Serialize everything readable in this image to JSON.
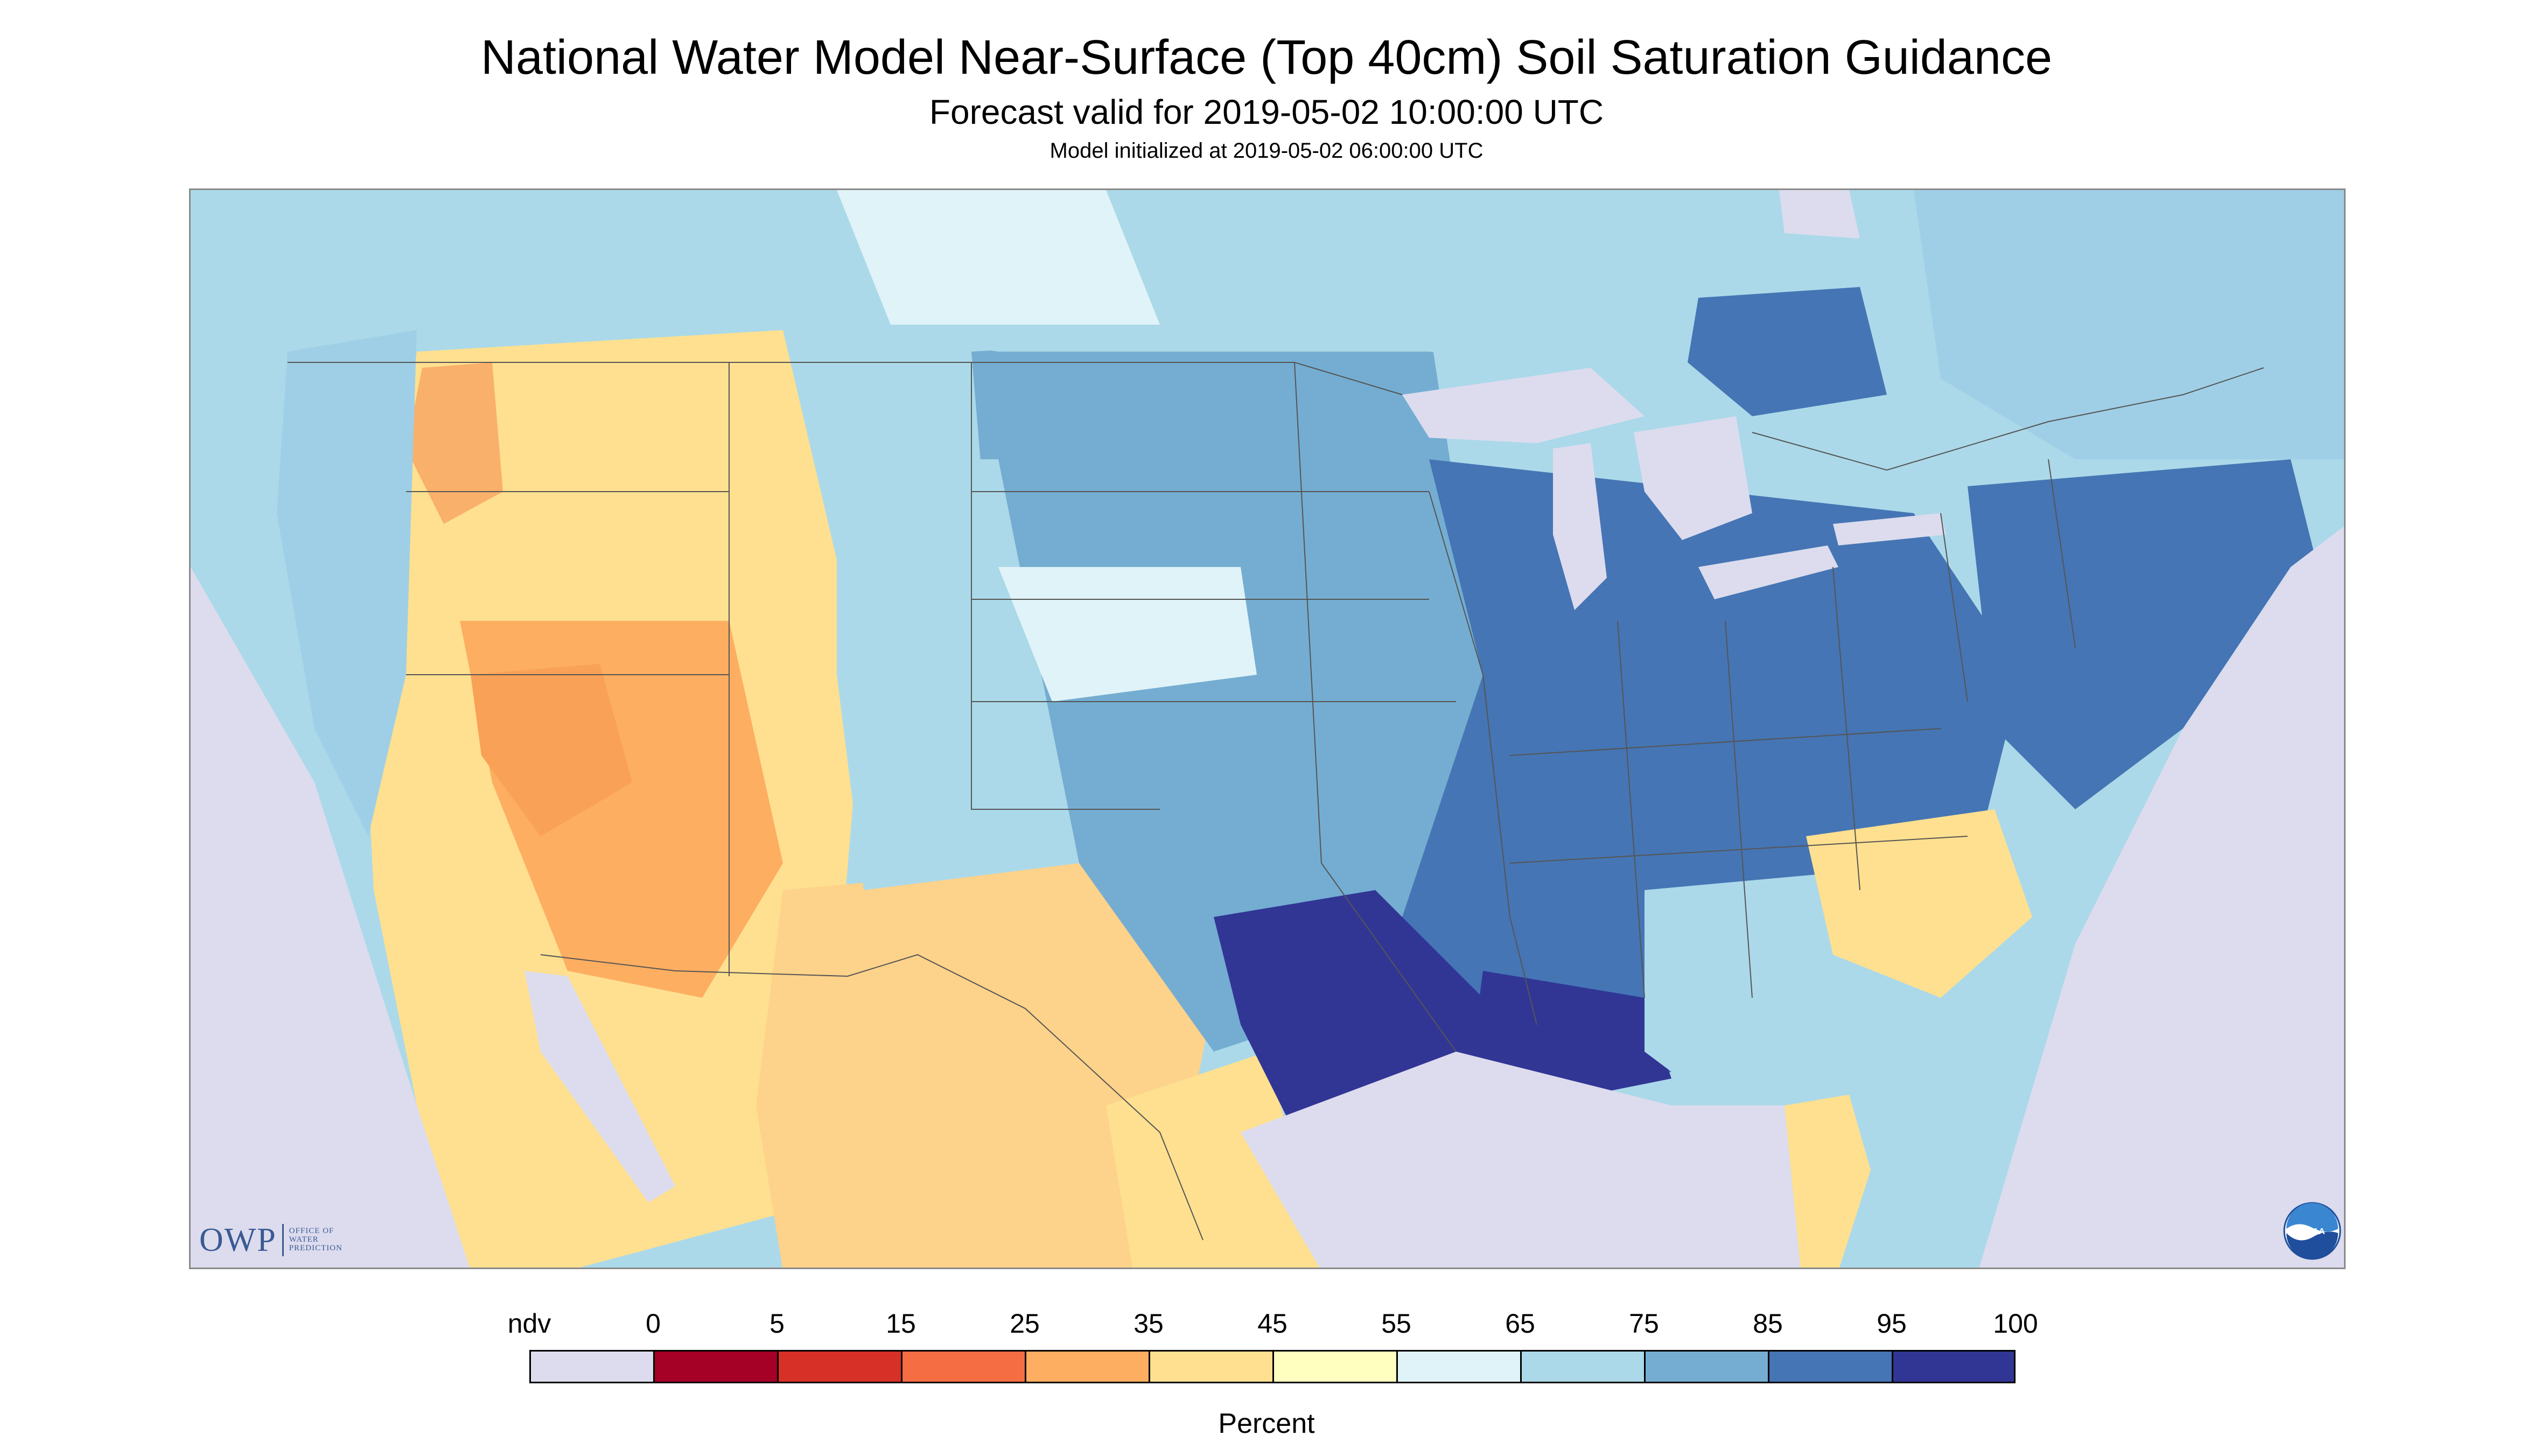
{
  "header": {
    "title": "National Water Model Near-Surface (Top 40cm) Soil Saturation Guidance",
    "forecast_valid": "Forecast valid for 2019-05-02 10:00:00 UTC",
    "model_initialized": "Model initialized at 2019-05-02 06:00:00 UTC"
  },
  "logos": {
    "owp_text": "OWP",
    "owp_subtext": "OFFICE OF WATER PREDICTION",
    "noaa_text": "NOAA"
  },
  "legend": {
    "unit": "Percent",
    "labels": [
      "ndv",
      "0",
      "5",
      "15",
      "25",
      "35",
      "45",
      "55",
      "65",
      "75",
      "85",
      "95",
      "100"
    ],
    "colors": [
      "#dcdcee",
      "#a50026",
      "#d73027",
      "#f46d43",
      "#fdae61",
      "#fee090",
      "#ffffbf",
      "#e0f3f8",
      "#abd9e9",
      "#74add1",
      "#4575b4",
      "#313695"
    ]
  },
  "map": {
    "nodata_color": "#dcdcee",
    "water_color": "#dcdcee",
    "region_levels": {
      "pacific_northwest_coast": "65-75",
      "intermountain_west": "25-45",
      "southwest_desert": "25-35",
      "northern_plains": "65-85",
      "central_midwest": "75-95",
      "east_texas_louisiana": "85-100",
      "west_texas_mexico": "35-45",
      "southeast": "45-65",
      "northeast": "75-85",
      "canada_east": "65-85"
    }
  }
}
